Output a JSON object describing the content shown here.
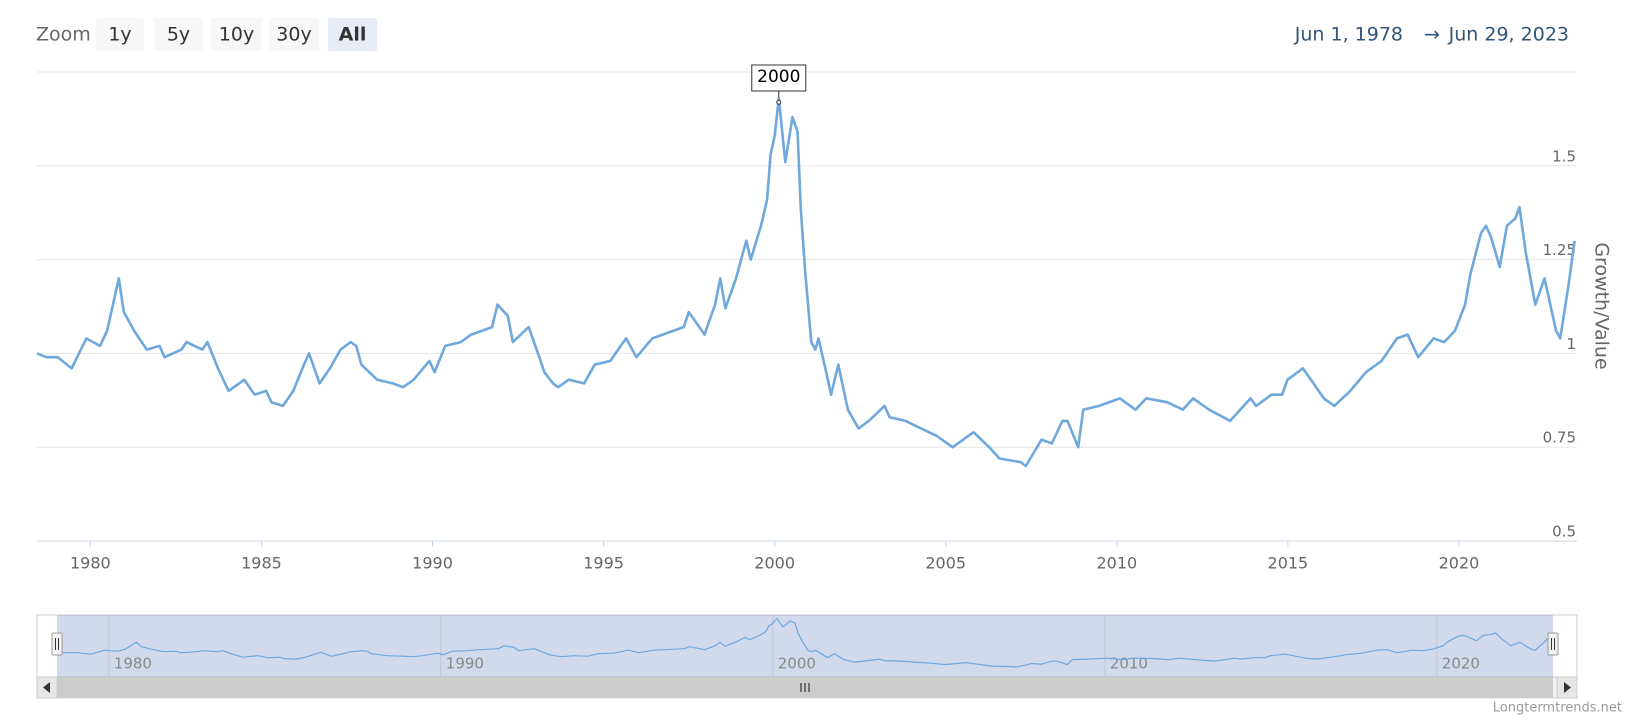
{
  "range_selector": {
    "label": "Zoom",
    "buttons": [
      "1y",
      "5y",
      "10y",
      "30y",
      "All"
    ],
    "selected": 4,
    "from": "Jun 1, 1978",
    "arrow": "→",
    "to": "Jun 29, 2023"
  },
  "credit": "Longtermtrends.net",
  "chart_data": {
    "type": "line",
    "y_axis_title": "Growth/Value",
    "color": "#6fa8dc",
    "grid": true,
    "xlim": [
      1978.44,
      2023.45
    ],
    "xticks": [
      1980,
      1985,
      1990,
      1995,
      2000,
      2005,
      2010,
      2015,
      2020
    ],
    "ylim": [
      0.5,
      1.75
    ],
    "yticks": [
      0.5,
      0.75,
      1,
      1.25,
      1.5
    ],
    "annotations": [
      {
        "x": 2000.12,
        "y": 1.68,
        "text": "2000"
      }
    ],
    "navigator": {
      "xticks": [
        1980,
        1990,
        2000,
        2010,
        2020
      ]
    },
    "x": [
      1978.44,
      1978.72,
      1979.05,
      1979.45,
      1979.88,
      1980.28,
      1980.49,
      1980.83,
      1980.98,
      1981.28,
      1981.65,
      1982.02,
      1982.17,
      1982.66,
      1982.81,
      1983.27,
      1983.42,
      1983.73,
      1984.04,
      1984.5,
      1984.8,
      1985.14,
      1985.29,
      1985.63,
      1985.93,
      1986.24,
      1986.39,
      1986.7,
      1987.0,
      1987.31,
      1987.61,
      1987.77,
      1987.92,
      1988.38,
      1988.84,
      1989.14,
      1989.45,
      1989.91,
      1990.06,
      1990.37,
      1990.83,
      1991.13,
      1991.44,
      1991.74,
      1991.9,
      1992.2,
      1992.35,
      1992.81,
      1993.12,
      1993.27,
      1993.52,
      1993.67,
      1993.98,
      1994.43,
      1994.74,
      1995.2,
      1995.5,
      1995.66,
      1995.96,
      1996.42,
      1996.73,
      1997.03,
      1997.34,
      1997.49,
      1997.8,
      1997.95,
      1998.26,
      1998.41,
      1998.56,
      1998.87,
      1999.17,
      1999.3,
      1999.6,
      1999.78,
      1999.88,
      2000.0,
      2000.12,
      2000.31,
      2000.52,
      2000.67,
      2000.76,
      2000.89,
      2001.07,
      2001.19,
      2001.28,
      2001.53,
      2001.65,
      2001.86,
      2002.14,
      2002.45,
      2002.75,
      2003.21,
      2003.36,
      2003.82,
      2004.28,
      2004.74,
      2005.2,
      2005.81,
      2006.27,
      2006.57,
      2007.19,
      2007.34,
      2007.8,
      2008.1,
      2008.41,
      2008.56,
      2008.87,
      2009.02,
      2009.48,
      2010.09,
      2010.55,
      2010.86,
      2011.47,
      2011.93,
      2012.23,
      2012.7,
      2013.31,
      2013.91,
      2014.07,
      2014.52,
      2014.83,
      2014.99,
      2015.44,
      2015.75,
      2016.05,
      2016.36,
      2016.82,
      2017.28,
      2017.74,
      2018.19,
      2018.5,
      2018.81,
      2019.26,
      2019.57,
      2019.88,
      2020.18,
      2020.33,
      2020.64,
      2020.79,
      2020.94,
      2021.19,
      2021.4,
      2021.65,
      2021.77,
      2021.95,
      2022.23,
      2022.5,
      2022.84,
      2022.96,
      2023.2,
      2023.38
    ],
    "values": [
      1.0,
      0.99,
      0.99,
      0.96,
      1.04,
      1.02,
      1.06,
      1.2,
      1.11,
      1.06,
      1.01,
      1.02,
      0.99,
      1.01,
      1.03,
      1.01,
      1.03,
      0.96,
      0.9,
      0.93,
      0.89,
      0.9,
      0.87,
      0.86,
      0.9,
      0.97,
      1.0,
      0.92,
      0.96,
      1.01,
      1.03,
      1.02,
      0.97,
      0.93,
      0.92,
      0.91,
      0.93,
      0.98,
      0.95,
      1.02,
      1.03,
      1.05,
      1.06,
      1.07,
      1.13,
      1.1,
      1.03,
      1.07,
      0.99,
      0.95,
      0.92,
      0.91,
      0.93,
      0.92,
      0.97,
      0.98,
      1.02,
      1.04,
      0.99,
      1.04,
      1.05,
      1.06,
      1.07,
      1.11,
      1.07,
      1.05,
      1.13,
      1.2,
      1.12,
      1.2,
      1.3,
      1.25,
      1.34,
      1.41,
      1.53,
      1.58,
      1.68,
      1.51,
      1.63,
      1.59,
      1.39,
      1.22,
      1.03,
      1.01,
      1.04,
      0.94,
      0.89,
      0.97,
      0.85,
      0.8,
      0.82,
      0.86,
      0.83,
      0.82,
      0.8,
      0.78,
      0.75,
      0.79,
      0.75,
      0.72,
      0.71,
      0.7,
      0.77,
      0.76,
      0.82,
      0.82,
      0.75,
      0.85,
      0.86,
      0.88,
      0.85,
      0.88,
      0.87,
      0.85,
      0.88,
      0.85,
      0.82,
      0.88,
      0.86,
      0.89,
      0.89,
      0.93,
      0.96,
      0.92,
      0.88,
      0.86,
      0.9,
      0.95,
      0.98,
      1.04,
      1.05,
      0.99,
      1.04,
      1.03,
      1.06,
      1.13,
      1.21,
      1.32,
      1.34,
      1.31,
      1.23,
      1.34,
      1.36,
      1.39,
      1.27,
      1.13,
      1.2,
      1.06,
      1.04,
      1.18,
      1.3
    ]
  }
}
